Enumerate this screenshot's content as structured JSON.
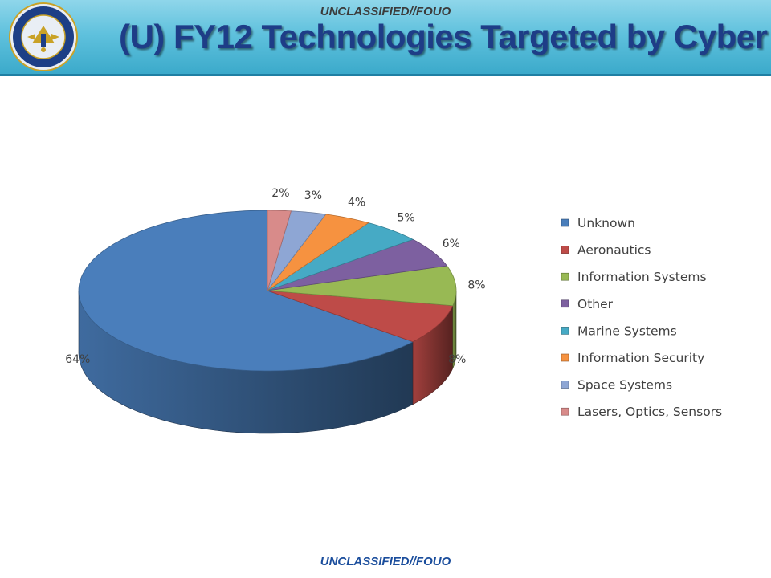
{
  "header": {
    "classification_top": "UNCLASSIFIED//FOUO",
    "title": "(U) FY12 Technologies Targeted by Cyber",
    "seal_text": "DEFENSE SECURITY SERVICE · UNITED STATES OF AMERICA"
  },
  "footer": {
    "classification_bottom": "UNCLASSIFIED//FOUO"
  },
  "colors": {
    "header_bg": "#5fc1dd",
    "title": "#1e3d87"
  },
  "chart_data": {
    "type": "pie",
    "style": "3d",
    "legend_position": "right",
    "slices": [
      {
        "label": "Unknown",
        "value": 64,
        "display": "64%",
        "color": "#4a7ebb"
      },
      {
        "label": "Aeronautics",
        "value": 8,
        "display": "8%",
        "color": "#be4b48"
      },
      {
        "label": "Information Systems",
        "value": 8,
        "display": "8%",
        "color": "#98b954"
      },
      {
        "label": "Other",
        "value": 6,
        "display": "6%",
        "color": "#7d60a0"
      },
      {
        "label": "Marine Systems",
        "value": 5,
        "display": "5%",
        "color": "#46aac5"
      },
      {
        "label": "Information Security",
        "value": 4,
        "display": "4%",
        "color": "#f69240"
      },
      {
        "label": "Space Systems",
        "value": 3,
        "display": "3%",
        "color": "#8ea6d4"
      },
      {
        "label": "Lasers, Optics, Sensors",
        "value": 2,
        "display": "2%",
        "color": "#d88b8a"
      }
    ]
  }
}
